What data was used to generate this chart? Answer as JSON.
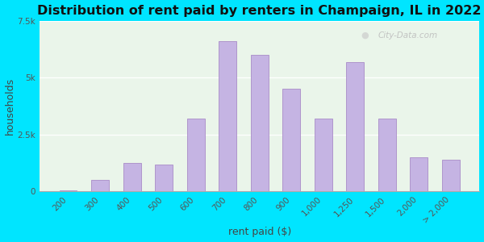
{
  "title": "Distribution of rent paid by renters in Champaign, IL in 2022",
  "xlabel": "rent paid ($)",
  "ylabel": "households",
  "categories": [
    "200",
    "300",
    "400",
    "500",
    "600",
    "700",
    "800",
    "900",
    "1,000",
    "1,250",
    "1,500",
    "2,000",
    "> 2,000"
  ],
  "values": [
    50,
    500,
    1250,
    1200,
    3200,
    6600,
    6000,
    4500,
    3200,
    5700,
    3200,
    1500,
    1400
  ],
  "bar_color": "#c5b4e3",
  "bar_edge_color": "#a98cc8",
  "background_outer": "#00e5ff",
  "background_plot": "#eaf5ea",
  "ylim": [
    0,
    7500
  ],
  "yticks": [
    0,
    2500,
    5000,
    7500
  ],
  "ytick_labels": [
    "0",
    "2.5k",
    "5k",
    "7.5k"
  ],
  "title_fontsize": 11.5,
  "axis_label_fontsize": 9,
  "tick_fontsize": 7.5,
  "watermark": "City-Data.com",
  "bar_width": 0.55
}
